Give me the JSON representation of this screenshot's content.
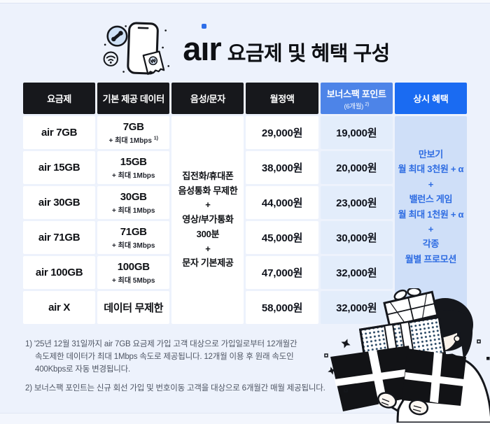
{
  "header": {
    "logo": "air",
    "title": "요금제 및 혜택 구성"
  },
  "table": {
    "columns": [
      {
        "label": "요금제"
      },
      {
        "label": "기본 제공 데이터"
      },
      {
        "label": "음성/문자"
      },
      {
        "label": "월정액"
      },
      {
        "label": "보너스팩 포인트",
        "sub": "(6개월)",
        "sup": "2)"
      },
      {
        "label": "상시 혜택"
      }
    ],
    "plans": [
      {
        "name": "air 7GB",
        "data_main": "7GB",
        "data_sub": "+ 최대 1Mbps",
        "data_sup": "1)",
        "monthly": "29,000원",
        "bonus": "19,000원"
      },
      {
        "name": "air 15GB",
        "data_main": "15GB",
        "data_sub": "+ 최대 1Mbps",
        "monthly": "38,000원",
        "bonus": "20,000원"
      },
      {
        "name": "air 30GB",
        "data_main": "30GB",
        "data_sub": "+ 최대 1Mbps",
        "monthly": "44,000원",
        "bonus": "23,000원"
      },
      {
        "name": "air 71GB",
        "data_main": "71GB",
        "data_sub": "+ 최대 3Mbps",
        "monthly": "45,000원",
        "bonus": "30,000원"
      },
      {
        "name": "air 100GB",
        "data_main": "100GB",
        "data_sub": "+ 최대 5Mbps",
        "monthly": "47,000원",
        "bonus": "32,000원"
      },
      {
        "name": "air X",
        "data_main": "데이터 무제한",
        "monthly": "58,000원",
        "bonus": "32,000원"
      }
    ],
    "voice_text_lines": [
      "집전화/휴대폰",
      "음성통화 무제한",
      "+",
      "영상/부가통화",
      "300분",
      "+",
      "문자 기본제공"
    ],
    "benefit_lines": [
      "만보기",
      "월 최대 3천원 + α",
      "+",
      "밸런스 게임",
      "월 최대 1천원 + α",
      "+",
      "각종",
      "월별 프로모션"
    ]
  },
  "footnotes": [
    "1) '25년 12월 31일까지 air 7GB 요금제 가입 고객 대상으로 가입일로부터 12개월간\n속도제한 데이터가 최대 1Mbps 속도로 제공됩니다. 12개월 이용 후 원래 속도인\n400Kbps로 자동 변경됩니다.",
    "2) 보너스팩 포인트는 신규 회선 가입 및 번호이동 고객을 대상으로 6개월간 매월 제공됩니다."
  ],
  "icons": {
    "phone_illustration": "smartphone-with-call-bubble-wifi-and-receipt",
    "person_illustration": "person-holding-gift-boxes"
  },
  "colors": {
    "page_bg": "#edf2fc",
    "header_dark": "#17181c",
    "header_bonus_blue": "#4d84e8",
    "header_benefit_blue": "#1a6bf2",
    "bonus_cell_bg": "#e3edfb",
    "benefit_cell_bg": "#cfdff8",
    "benefit_text_blue": "#2e6ce2",
    "logo_dot_blue": "#2e6ee9",
    "footnote_gray": "#4e5563"
  }
}
